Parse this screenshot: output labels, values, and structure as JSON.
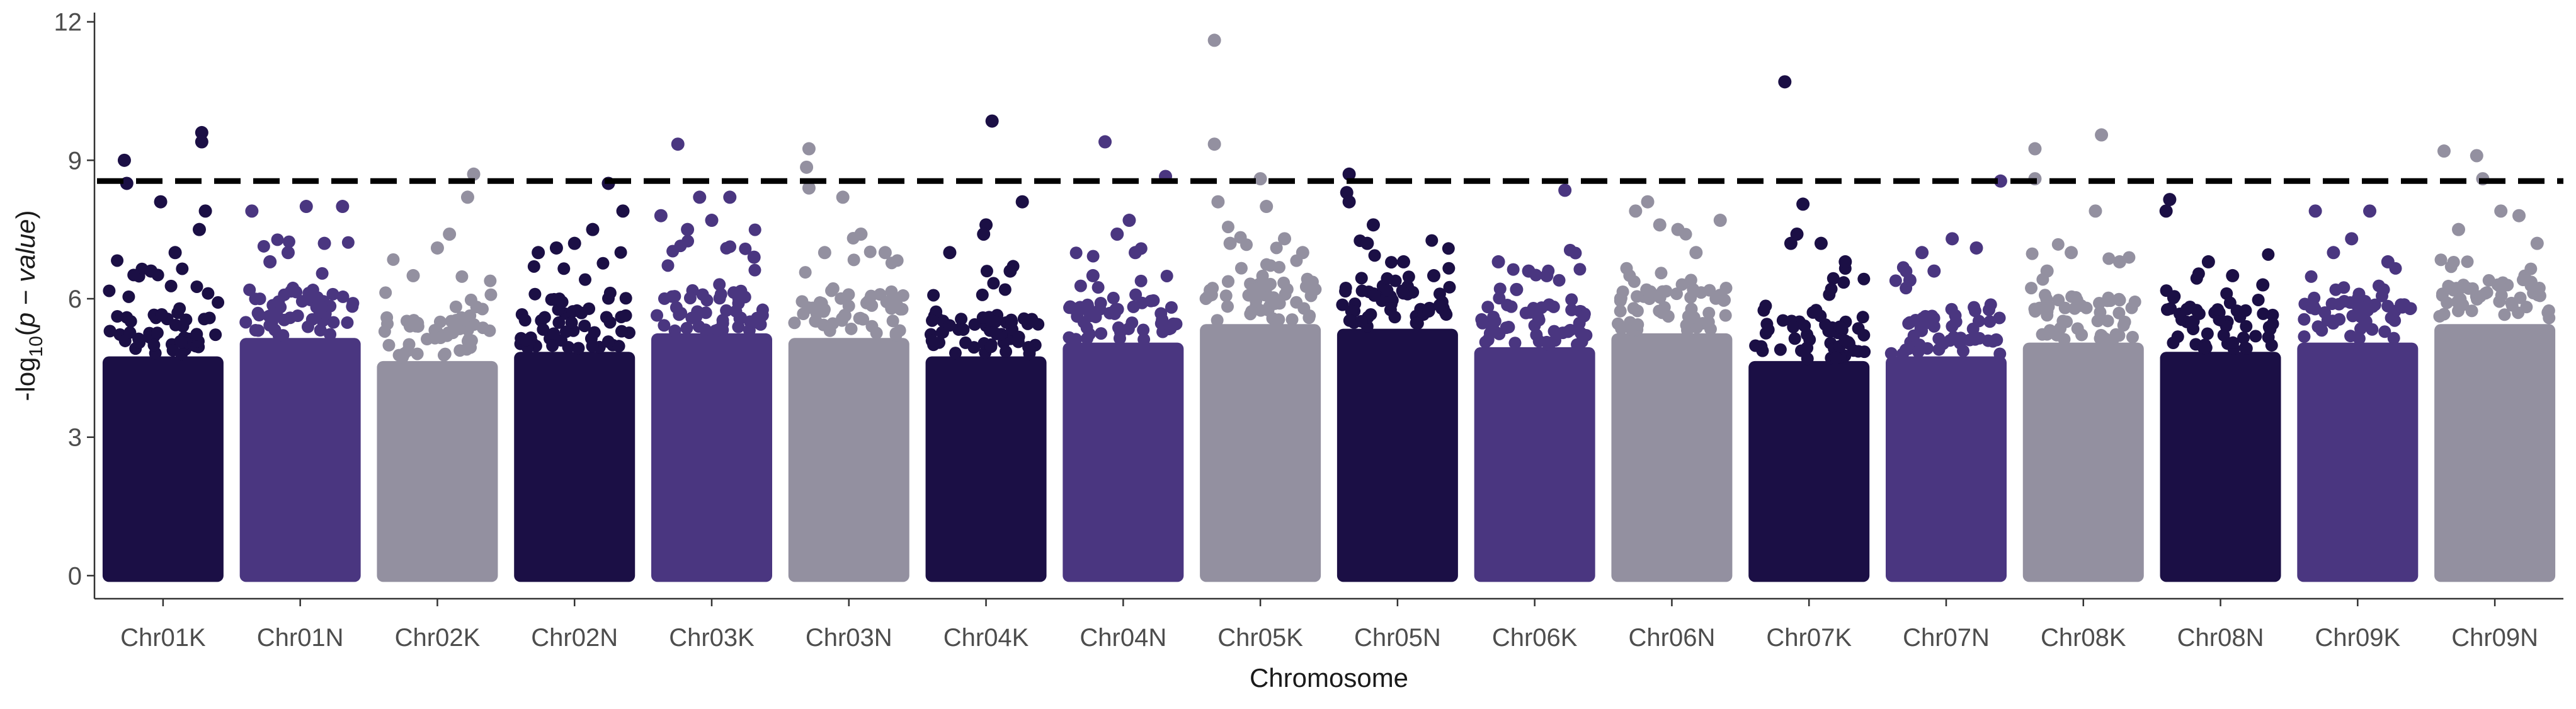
{
  "chart_data": {
    "type": "scatter",
    "subtype": "manhattan",
    "title": "",
    "xlabel": "Chromosome",
    "ylabel": {
      "prefix": "-log",
      "subscript": "10",
      "open": "(",
      "var": "p",
      "minus": " − ",
      "var2": "value",
      "close": ")"
    },
    "ylim": [
      -0.5,
      12.2
    ],
    "yticks": [
      "0",
      "3",
      "6",
      "9",
      "12"
    ],
    "ytick_values": [
      0,
      3,
      6,
      9,
      12
    ],
    "grid": false,
    "legend": "none",
    "threshold": 8.55,
    "colors": [
      "#1b0f45",
      "#4a3680",
      "#9390a0"
    ],
    "categories": [
      "Chr01K",
      "Chr01N",
      "Chr02K",
      "Chr02N",
      "Chr03K",
      "Chr03N",
      "Chr04K",
      "Chr04N",
      "Chr05K",
      "Chr05N",
      "Chr06K",
      "Chr06N",
      "Chr07K",
      "Chr07N",
      "Chr08K",
      "Chr08N",
      "Chr09K",
      "Chr09N"
    ],
    "base_heights": [
      5.1,
      5.5,
      5.0,
      5.2,
      5.6,
      5.5,
      5.1,
      5.4,
      5.8,
      5.7,
      5.3,
      5.6,
      5.0,
      5.1,
      5.4,
      5.2,
      5.4,
      5.8
    ],
    "top_hits": [
      [
        [
          0.18,
          9.0
        ],
        [
          0.2,
          8.5
        ],
        [
          0.48,
          8.1
        ],
        [
          0.82,
          9.6
        ],
        [
          0.82,
          9.4
        ],
        [
          0.85,
          7.9
        ],
        [
          0.8,
          7.5
        ],
        [
          0.6,
          7.0
        ],
        [
          0.4,
          6.6
        ]
      ],
      [
        [
          0.1,
          7.9
        ],
        [
          0.55,
          8.0
        ],
        [
          0.85,
          8.0
        ],
        [
          0.4,
          7.0
        ],
        [
          0.7,
          7.2
        ],
        [
          0.25,
          6.8
        ]
      ],
      [
        [
          0.5,
          7.1
        ],
        [
          0.8,
          8.7
        ],
        [
          0.75,
          8.2
        ],
        [
          0.6,
          7.4
        ],
        [
          0.3,
          6.5
        ]
      ],
      [
        [
          0.2,
          7.0
        ],
        [
          0.78,
          8.5
        ],
        [
          0.9,
          7.9
        ],
        [
          0.5,
          7.2
        ],
        [
          0.65,
          7.5
        ],
        [
          0.35,
          7.1
        ]
      ],
      [
        [
          0.22,
          9.35
        ],
        [
          0.4,
          8.2
        ],
        [
          0.08,
          7.8
        ],
        [
          0.5,
          7.7
        ],
        [
          0.65,
          8.2
        ],
        [
          0.3,
          7.5
        ],
        [
          0.85,
          6.9
        ]
      ],
      [
        [
          0.17,
          9.25
        ],
        [
          0.15,
          8.85
        ],
        [
          0.17,
          8.4
        ],
        [
          0.45,
          8.2
        ],
        [
          0.3,
          7.0
        ],
        [
          0.6,
          7.4
        ],
        [
          0.8,
          7.0
        ]
      ],
      [
        [
          0.55,
          9.85
        ],
        [
          0.8,
          8.1
        ],
        [
          0.5,
          7.6
        ],
        [
          0.48,
          7.4
        ],
        [
          0.2,
          7.0
        ],
        [
          0.7,
          6.6
        ]
      ],
      [
        [
          0.35,
          9.4
        ],
        [
          0.85,
          8.65
        ],
        [
          0.55,
          7.7
        ],
        [
          0.45,
          7.4
        ],
        [
          0.6,
          7.0
        ],
        [
          0.25,
          6.5
        ]
      ],
      [
        [
          0.12,
          11.6
        ],
        [
          0.12,
          9.35
        ],
        [
          0.15,
          8.1
        ],
        [
          0.5,
          8.6
        ],
        [
          0.55,
          8.0
        ],
        [
          0.25,
          7.2
        ],
        [
          0.7,
          7.3
        ],
        [
          0.85,
          7.0
        ]
      ],
      [
        [
          0.1,
          8.7
        ],
        [
          0.08,
          8.3
        ],
        [
          0.1,
          8.1
        ],
        [
          0.3,
          7.6
        ],
        [
          0.25,
          7.2
        ],
        [
          0.55,
          6.8
        ],
        [
          0.8,
          6.5
        ]
      ],
      [
        [
          0.75,
          8.35
        ],
        [
          0.2,
          6.8
        ],
        [
          0.45,
          6.6
        ],
        [
          0.6,
          6.5
        ],
        [
          0.35,
          6.2
        ]
      ],
      [
        [
          0.2,
          7.9
        ],
        [
          0.3,
          8.1
        ],
        [
          0.4,
          7.6
        ],
        [
          0.55,
          7.5
        ],
        [
          0.9,
          7.7
        ],
        [
          0.7,
          7.0
        ]
      ],
      [
        [
          0.3,
          10.7
        ],
        [
          0.4,
          7.4
        ],
        [
          0.45,
          8.05
        ],
        [
          0.35,
          7.2
        ],
        [
          0.6,
          7.2
        ],
        [
          0.8,
          6.8
        ]
      ],
      [
        [
          0.3,
          7.0
        ],
        [
          0.55,
          7.3
        ],
        [
          0.75,
          7.1
        ],
        [
          0.95,
          8.55
        ],
        [
          0.4,
          6.6
        ],
        [
          0.2,
          6.4
        ]
      ],
      [
        [
          0.1,
          9.25
        ],
        [
          0.1,
          8.6
        ],
        [
          0.65,
          9.55
        ],
        [
          0.6,
          7.9
        ],
        [
          0.4,
          7.0
        ],
        [
          0.2,
          6.6
        ],
        [
          0.8,
          6.8
        ]
      ],
      [
        [
          0.08,
          8.15
        ],
        [
          0.05,
          7.9
        ],
        [
          0.4,
          6.8
        ],
        [
          0.6,
          6.5
        ],
        [
          0.85,
          6.3
        ]
      ],
      [
        [
          0.15,
          7.9
        ],
        [
          0.6,
          7.9
        ],
        [
          0.45,
          7.3
        ],
        [
          0.3,
          7.0
        ],
        [
          0.75,
          6.8
        ]
      ],
      [
        [
          0.08,
          9.2
        ],
        [
          0.35,
          9.1
        ],
        [
          0.4,
          8.6
        ],
        [
          0.55,
          7.9
        ],
        [
          0.7,
          7.8
        ],
        [
          0.2,
          7.5
        ],
        [
          0.85,
          7.2
        ]
      ]
    ]
  }
}
